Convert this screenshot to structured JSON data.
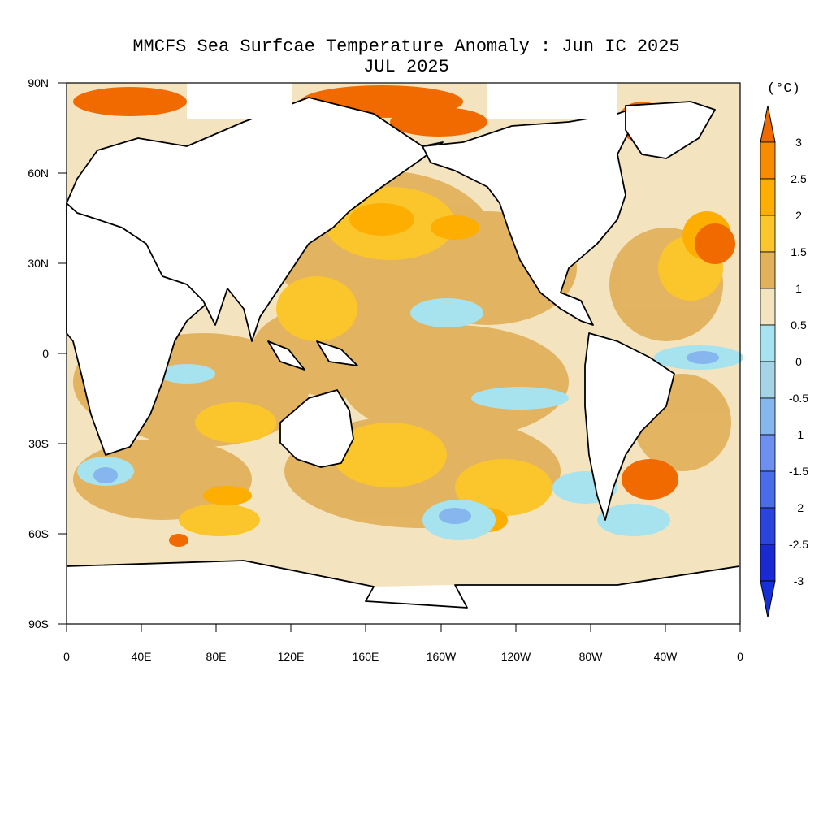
{
  "title": {
    "line1": "MMCFS Sea Surfcae Temperature Anomaly : Jun IC 2025",
    "line2": "JUL 2025"
  },
  "units": "(°C)",
  "lat_labels": [
    "90N",
    "60N",
    "30N",
    "0",
    "30S",
    "60S",
    "90S"
  ],
  "lon_labels": [
    "0",
    "40E",
    "80E",
    "120E",
    "160E",
    "160W",
    "120W",
    "80W",
    "40W",
    "0"
  ],
  "colorbar": {
    "labels": [
      "3",
      "2.5",
      "2",
      "1.5",
      "1",
      "0.5",
      "0",
      "-0.5",
      "-1",
      "-1.5",
      "-2",
      "-2.5",
      "-3"
    ],
    "colors": [
      "#f06a00",
      "#f88c00",
      "#fdae00",
      "#fbc52c",
      "#e2b15c",
      "#f3e4bf",
      "#a6e3ee",
      "#a6d4e6",
      "#87b6ef",
      "#6c8ff0",
      "#4a6ce8",
      "#2a44dc",
      "#1a2ad0"
    ],
    "top_color": "#ee6a00",
    "bottom_color": "#1530d8"
  },
  "colors": {
    "ocean_base": "#f3e4bf",
    "land": "#ffffff",
    "coast": "#000000"
  }
}
